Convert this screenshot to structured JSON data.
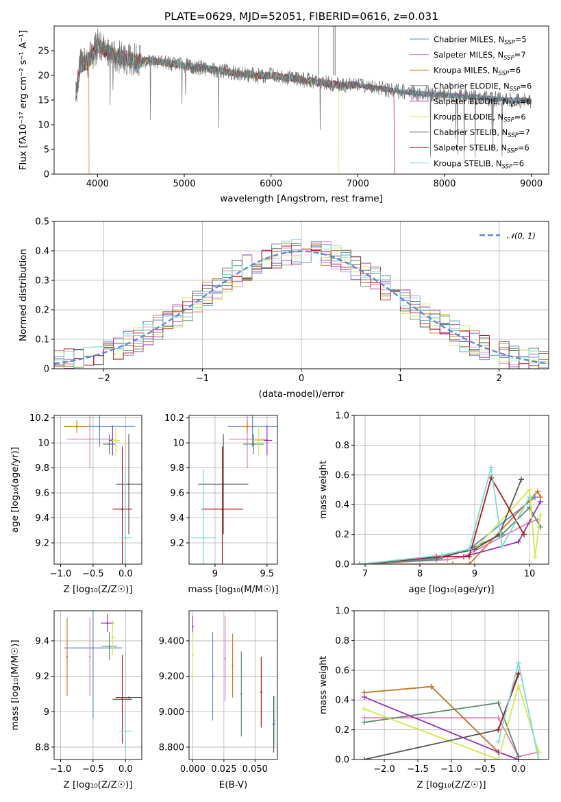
{
  "title": "PLATE=0629, MJD=52051, FIBERID=0616, z=0.031",
  "models": [
    {
      "name": "Chabrier MILES",
      "nssp": "5",
      "color": "#5b8bd9"
    },
    {
      "name": "Salpeter MILES",
      "nssp": "7",
      "color": "#e07fbf"
    },
    {
      "name": "Kroupa MILES",
      "nssp": "6",
      "color": "#d07a1c"
    },
    {
      "name": "Chabrier ELODIE",
      "nssp": "6",
      "color": "#5b8a6a"
    },
    {
      "name": "Salpeter ELODIE",
      "nssp": "6",
      "color": "#9b30b0"
    },
    {
      "name": "Kroupa ELODIE",
      "nssp": "6",
      "color": "#d4e84a"
    },
    {
      "name": "Chabrier STELIB",
      "nssp": "7",
      "color": "#555555"
    },
    {
      "name": "Salpeter STELIB",
      "nssp": "6",
      "color": "#b01818"
    },
    {
      "name": "Kroupa STELIB",
      "nssp": "6",
      "color": "#78dada"
    }
  ],
  "legend_suffix": "SSP",
  "chart_data": [
    {
      "id": "spectrum",
      "type": "line",
      "xlabel": "wavelength [Angstrom, rest frame]",
      "ylabel": "Flux [fλ10⁻¹⁷ erg cm⁻² s⁻¹ A⁻¹]",
      "xlim": [
        3500,
        9200
      ],
      "ylim": [
        0,
        30
      ],
      "xticks": [
        4000,
        5000,
        6000,
        7000,
        8000,
        9000
      ],
      "yticks": [
        0,
        5,
        10,
        15,
        20,
        25
      ],
      "data_spectrum": {
        "x": [
          3750,
          3800,
          3900,
          4000,
          4100,
          4200,
          4300,
          4400,
          4600,
          4800,
          5000,
          5200,
          5400,
          5600,
          5800,
          6000,
          6200,
          6400,
          6600,
          6800,
          7000,
          7200,
          7400,
          7600,
          7800,
          8000,
          8200,
          8400,
          8600,
          8800,
          9000
        ],
        "y": [
          16,
          22,
          23,
          26,
          25,
          24,
          23.5,
          23,
          23,
          22.5,
          22,
          21.5,
          21,
          20.5,
          20,
          20,
          19.5,
          19,
          18.5,
          18,
          18,
          17.5,
          17,
          16.5,
          16.2,
          16,
          15.8,
          15.5,
          15.2,
          15,
          14.8
        ]
      }
    },
    {
      "id": "residuals",
      "type": "histogram",
      "xlabel": "(data-model)/error",
      "ylabel": "Normed distribution",
      "xlim": [
        -2.5,
        2.5
      ],
      "ylim": [
        0,
        0.5
      ],
      "xticks": [
        -2,
        -1,
        0,
        1,
        2
      ],
      "yticks": [
        0.0,
        0.1,
        0.2,
        0.3,
        0.4,
        0.5
      ],
      "gaussian_label": "𝒩(0, 1)"
    },
    {
      "id": "age-vs-Z",
      "type": "scatter",
      "xlabel": "Z [log₁₀(Z/Z☉)]",
      "ylabel": "age  [log₁₀(age/yr)]",
      "xlim": [
        -1.1,
        0.25
      ],
      "ylim": [
        9.03,
        10.22
      ],
      "xticks": [
        -1.0,
        -0.5,
        0.0
      ],
      "yticks": [
        9.2,
        9.4,
        9.6,
        9.8,
        10.0,
        10.2
      ],
      "points": [
        {
          "x": -0.4,
          "y": 10.13,
          "xerr": 0.55,
          "yerr": 0.16
        },
        {
          "x": -0.55,
          "y": 10.03,
          "xerr": 0.35,
          "yerr": 0.23
        },
        {
          "x": -0.75,
          "y": 10.13,
          "xerr": 0.2,
          "yerr": 0.05
        },
        {
          "x": -0.25,
          "y": 9.99,
          "xerr": 0.1,
          "yerr": 0.08
        },
        {
          "x": -0.2,
          "y": 10.02,
          "xerr": 0.05,
          "yerr": 0.12
        },
        {
          "x": -0.15,
          "y": 10.02,
          "xerr": 0.06,
          "yerr": 0.12
        },
        {
          "x": 0.05,
          "y": 9.67,
          "xerr": 0.2,
          "yerr": 0.4
        },
        {
          "x": -0.05,
          "y": 9.47,
          "xerr": 0.15,
          "yerr": 0.5
        },
        {
          "x": 0.0,
          "y": 9.24,
          "xerr": 0.1,
          "yerr": 0.55
        }
      ]
    },
    {
      "id": "age-vs-mass",
      "type": "scatter",
      "xlabel": "mass [log₁₀(M/M☉)]",
      "ylabel": "",
      "xlim": [
        8.75,
        9.6
      ],
      "ylim": [
        9.03,
        10.22
      ],
      "xticks": [
        9.0,
        9.5
      ],
      "yticks": [
        9.2,
        9.4,
        9.6,
        9.8,
        10.0,
        10.2
      ],
      "points": [
        {
          "x": 9.36,
          "y": 10.13,
          "xerr": 0.24,
          "yerr": 0.16
        },
        {
          "x": 9.31,
          "y": 10.03,
          "xerr": 0.18,
          "yerr": 0.23
        },
        {
          "x": 9.31,
          "y": 10.13,
          "xerr": 0.05,
          "yerr": 0.05
        },
        {
          "x": 9.37,
          "y": 9.99,
          "xerr": 0.1,
          "yerr": 0.08
        },
        {
          "x": 9.5,
          "y": 10.02,
          "xerr": 0.05,
          "yerr": 0.12
        },
        {
          "x": 9.42,
          "y": 10.02,
          "xerr": 0.05,
          "yerr": 0.12
        },
        {
          "x": 9.08,
          "y": 9.67,
          "xerr": 0.24,
          "yerr": 0.4
        },
        {
          "x": 9.07,
          "y": 9.47,
          "xerr": 0.2,
          "yerr": 0.5
        },
        {
          "x": 8.89,
          "y": 9.24,
          "xerr": 0.12,
          "yerr": 0.55
        }
      ]
    },
    {
      "id": "massweight-vs-age",
      "type": "line",
      "xlabel": "age  [log₁₀(age/yr)]",
      "ylabel": "mass weight",
      "xlim": [
        6.8,
        10.35
      ],
      "ylim": [
        0,
        1.0
      ],
      "xticks": [
        7,
        8,
        9,
        10
      ],
      "yticks": [
        0.0,
        0.2,
        0.4,
        0.6,
        0.8,
        1.0
      ],
      "series": [
        {
          "x": [
            6.9,
            8.3,
            8.9,
            10.1,
            10.2
          ],
          "y": [
            0.0,
            0.04,
            0.1,
            0.45,
            0.45
          ]
        },
        {
          "x": [
            6.9,
            8.5,
            8.8,
            10.0,
            10.15
          ],
          "y": [
            0.0,
            0.03,
            0.05,
            0.28,
            0.3
          ]
        },
        {
          "x": [
            6.9,
            8.6,
            8.9,
            10.15,
            10.2
          ],
          "y": [
            0.0,
            0.0,
            0.0,
            0.49,
            0.45
          ]
        },
        {
          "x": [
            6.9,
            8.3,
            8.9,
            9.5,
            10.0,
            10.2
          ],
          "y": [
            0.0,
            0.03,
            0.1,
            0.2,
            0.38,
            0.25
          ]
        },
        {
          "x": [
            6.9,
            8.3,
            8.8,
            9.8,
            10.2
          ],
          "y": [
            0.0,
            0.05,
            0.05,
            0.15,
            0.42
          ]
        },
        {
          "x": [
            6.9,
            8.3,
            9.0,
            10.0,
            10.1,
            10.2
          ],
          "y": [
            0.0,
            0.05,
            0.1,
            0.5,
            0.05,
            0.33
          ]
        },
        {
          "x": [
            6.9,
            8.4,
            9.0,
            9.45,
            9.85
          ],
          "y": [
            0.0,
            0.05,
            0.1,
            0.2,
            0.57
          ]
        },
        {
          "x": [
            6.9,
            8.3,
            8.9,
            9.3,
            9.9
          ],
          "y": [
            0.0,
            0.05,
            0.05,
            0.58,
            0.2
          ]
        },
        {
          "x": [
            6.9,
            8.4,
            8.9,
            9.3,
            9.5,
            10.0
          ],
          "y": [
            0.0,
            0.06,
            0.1,
            0.65,
            0.12,
            0.45
          ]
        }
      ]
    },
    {
      "id": "mass-vs-Z",
      "type": "scatter",
      "xlabel": "Z [log₁₀(Z/Z☉)]",
      "ylabel": "mass [log₁₀(M/M☉)]",
      "xlim": [
        -1.1,
        0.25
      ],
      "ylim": [
        8.73,
        9.57
      ],
      "xticks": [
        -1.0,
        -0.5,
        0.0
      ],
      "yticks": [
        8.8,
        9.0,
        9.2,
        9.4
      ],
      "points": [
        {
          "x": -0.5,
          "y": 9.36,
          "xerr": 0.45,
          "yerr": 0.4
        },
        {
          "x": -0.55,
          "y": 9.31,
          "xerr": 0.0,
          "yerr": 0.22
        },
        {
          "x": -0.9,
          "y": 9.31,
          "xerr": 0.0,
          "yerr": 0.22
        },
        {
          "x": -0.25,
          "y": 9.37,
          "xerr": 0.12,
          "yerr": 0.08
        },
        {
          "x": -0.28,
          "y": 9.5,
          "xerr": 0.1,
          "yerr": 0.05
        },
        {
          "x": -0.2,
          "y": 9.42,
          "xerr": 0.05,
          "yerr": 0.1
        },
        {
          "x": 0.05,
          "y": 9.08,
          "xerr": 0.2,
          "yerr": 0.0
        },
        {
          "x": -0.05,
          "y": 9.07,
          "xerr": 0.15,
          "yerr": 0.25
        },
        {
          "x": 0.0,
          "y": 8.89,
          "xerr": 0.1,
          "yerr": 0.12
        }
      ]
    },
    {
      "id": "mass-vs-ebv",
      "type": "scatter",
      "xlabel": "E(B-V)",
      "ylabel": "",
      "xlim": [
        -0.003,
        0.068
      ],
      "ylim": [
        8.73,
        9.57
      ],
      "xticks": [
        0.0,
        0.025,
        0.05
      ],
      "yticks": [
        8.8,
        9.0,
        9.2,
        9.4
      ],
      "points": [
        {
          "x": 0.016,
          "y": 9.2,
          "yerr": 0.25
        },
        {
          "x": 0.026,
          "y": 9.3,
          "yerr": 0.24
        },
        {
          "x": 0.032,
          "y": 9.26,
          "yerr": 0.18
        },
        {
          "x": 0.039,
          "y": 9.1,
          "yerr": 0.24
        },
        {
          "x": 0.0,
          "y": 9.48,
          "yerr": 0.06
        },
        {
          "x": 0.0,
          "y": 9.32,
          "yerr": 0.13
        },
        {
          "x": 0.065,
          "y": 8.93,
          "yerr": 0.16
        },
        {
          "x": 0.055,
          "y": 9.11,
          "yerr": 0.2
        },
        {
          "x": 0.066,
          "y": 8.95,
          "yerr": 0.14
        }
      ]
    },
    {
      "id": "massweight-vs-Z",
      "type": "line",
      "xlabel": "Z [log₁₀(Z/Z☉)]",
      "ylabel": "mass weight",
      "xlim": [
        -2.45,
        0.45
      ],
      "ylim": [
        0,
        1.0
      ],
      "xticks": [
        -2.0,
        -1.5,
        -1.0,
        -0.5,
        0.0
      ],
      "yticks": [
        0.0,
        0.2,
        0.4,
        0.6,
        0.8,
        1.0
      ],
      "series": [
        {
          "x": [
            -2.3,
            -1.3,
            -0.3,
            0.0,
            0.3
          ],
          "y": [
            0.45,
            0.49,
            0.05,
            0.0,
            0.0
          ]
        },
        {
          "x": [
            -2.3,
            -0.3,
            0.0,
            0.3
          ],
          "y": [
            0.28,
            0.28,
            0.02,
            0.05
          ]
        },
        {
          "x": [
            -2.3,
            -1.3,
            -0.3,
            0.0,
            0.3
          ],
          "y": [
            0.45,
            0.49,
            0.05,
            0.0,
            0.0
          ]
        },
        {
          "x": [
            -2.3,
            -0.3,
            0.0
          ],
          "y": [
            0.25,
            0.38,
            0.02
          ]
        },
        {
          "x": [
            -2.3,
            -0.3,
            0.0
          ],
          "y": [
            0.42,
            0.05,
            0.0
          ]
        },
        {
          "x": [
            -2.3,
            -0.3,
            0.0,
            0.3
          ],
          "y": [
            0.34,
            0.0,
            0.5,
            0.05
          ]
        },
        {
          "x": [
            -2.3,
            -0.3,
            0.0
          ],
          "y": [
            0.0,
            0.2,
            0.57
          ]
        },
        {
          "x": [
            -0.3,
            0.0
          ],
          "y": [
            0.2,
            0.58
          ]
        },
        {
          "x": [
            -0.3,
            0.0,
            0.3
          ],
          "y": [
            0.12,
            0.65,
            0.0
          ]
        }
      ]
    }
  ]
}
